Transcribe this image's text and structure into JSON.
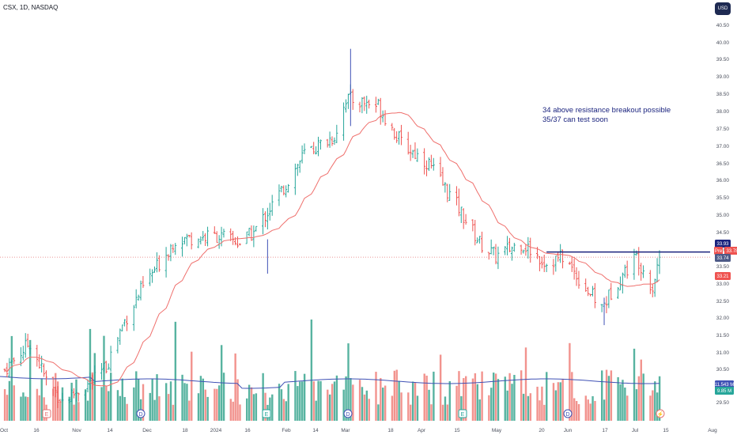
{
  "header": {
    "symbol": "CSX, 1D, NASDAQ"
  },
  "currency_button": "USD",
  "annotation": {
    "line1": "34 above resistance breakout possible",
    "line2": "35/37 can test soon"
  },
  "colors": {
    "up": "#26a69a",
    "down": "#ef5350",
    "vol_up": "#3aa68f",
    "vol_down": "#f0807a",
    "ma_price": "#ef6f6c",
    "ma_volume": "#3f51b5",
    "resistance": "#1a237e",
    "ref_line": "#e57373"
  },
  "chart_data": {
    "type": "ohlc",
    "y_axis": {
      "range": [
        29.3,
        40.7
      ],
      "ticks": [
        "29.50",
        "30.50",
        "31.00",
        "31.50",
        "32.00",
        "32.50",
        "33.00",
        "33.50",
        "34.00",
        "34.50",
        "35.00",
        "35.50",
        "36.00",
        "36.50",
        "37.00",
        "37.50",
        "38.00",
        "38.50",
        "39.00",
        "39.50",
        "40.00",
        "40.50"
      ]
    },
    "x_axis": {
      "ticks": [
        "Oct",
        "16",
        "Nov",
        "14",
        "Dec",
        "18",
        "2024",
        "16",
        "Feb",
        "14",
        "Mar",
        "18",
        "Apr",
        "15",
        "May",
        "20",
        "Jun",
        "17",
        "Jul",
        "15",
        "Aug"
      ]
    },
    "price_tags": [
      {
        "label": "33.93",
        "value": 33.93,
        "color": "#1a237e"
      },
      {
        "label": "Pre",
        "value": 33.77,
        "color": "#ef5350"
      },
      {
        "label": "33.78",
        "value": 33.78,
        "color": "#ef5350"
      },
      {
        "label": "33.74",
        "value": 33.74,
        "color": "#4d5a87"
      },
      {
        "label": "33.21",
        "value": 33.21,
        "color": "#ef5350"
      }
    ],
    "volume_tags": [
      {
        "label": "11.543 M",
        "color": "#3f51b5"
      },
      {
        "label": "9.85 M",
        "color": "#26a69a"
      }
    ],
    "resistance_level": 33.93,
    "events": [
      {
        "letter": "E",
        "x_label": "16",
        "color": "#e57373"
      },
      {
        "letter": "D",
        "x_label": "14",
        "color": "#3f51b5"
      },
      {
        "letter": "E",
        "x_label": "2024",
        "color": "#26a69a"
      },
      {
        "letter": "D",
        "x_label": "14",
        "color": "#3f51b5"
      },
      {
        "letter": "E",
        "x_label": "Apr",
        "color": "#26a69a"
      },
      {
        "letter": "D",
        "x_label": "Jun",
        "color": "#3f51b5"
      },
      {
        "letter": "⚡",
        "x_label": "Jul",
        "color": "#e57373"
      }
    ],
    "anchors": [
      {
        "date": "2023-10-02",
        "price": 30.5
      },
      {
        "date": "2023-10-13",
        "price": 31.3
      },
      {
        "date": "2023-10-20",
        "price": 30.2
      },
      {
        "date": "2023-10-27",
        "price": 29.6
      },
      {
        "date": "2023-11-10",
        "price": 30.2
      },
      {
        "date": "2023-11-15",
        "price": 30.6
      },
      {
        "date": "2023-11-22",
        "price": 31.8
      },
      {
        "date": "2023-11-30",
        "price": 32.8
      },
      {
        "date": "2023-12-08",
        "price": 33.6
      },
      {
        "date": "2023-12-15",
        "price": 34.3
      },
      {
        "date": "2024-01-02",
        "price": 34.4
      },
      {
        "date": "2024-01-12",
        "price": 34.2
      },
      {
        "date": "2024-01-18",
        "price": 34.5
      },
      {
        "date": "2024-02-01",
        "price": 35.9
      },
      {
        "date": "2024-02-09",
        "price": 36.8
      },
      {
        "date": "2024-02-22",
        "price": 37.3
      },
      {
        "date": "2024-02-27",
        "price": 38.4
      },
      {
        "date": "2024-03-12",
        "price": 38.2
      },
      {
        "date": "2024-03-22",
        "price": 37.1
      },
      {
        "date": "2024-04-03",
        "price": 36.5
      },
      {
        "date": "2024-04-15",
        "price": 35.3
      },
      {
        "date": "2024-04-25",
        "price": 34.2
      },
      {
        "date": "2024-05-02",
        "price": 33.8
      },
      {
        "date": "2024-05-13",
        "price": 34.2
      },
      {
        "date": "2024-05-24",
        "price": 33.6
      },
      {
        "date": "2024-05-31",
        "price": 33.8
      },
      {
        "date": "2024-06-11",
        "price": 32.8
      },
      {
        "date": "2024-06-17",
        "price": 32.3
      },
      {
        "date": "2024-06-25",
        "price": 33.2
      },
      {
        "date": "2024-07-02",
        "price": 33.8
      },
      {
        "date": "2024-07-09",
        "price": 32.9
      },
      {
        "date": "2024-07-12",
        "price": 33.8
      }
    ]
  }
}
